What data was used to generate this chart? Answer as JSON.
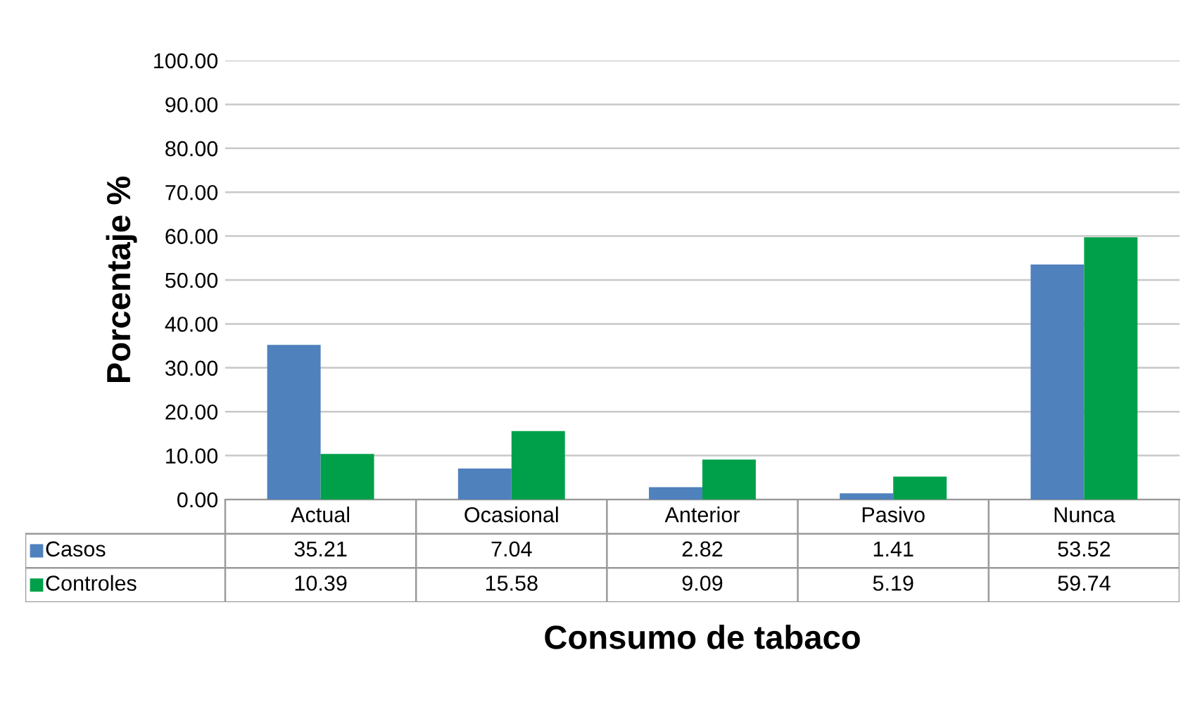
{
  "chart_data": {
    "type": "bar",
    "xlabel": "Consumo de tabaco",
    "ylabel": "Porcentaje %",
    "categories": [
      "Actual",
      "Ocasional",
      "Anterior",
      "Pasivo",
      "Nunca"
    ],
    "series": [
      {
        "name": "Casos",
        "color": "#4f81bd",
        "values": [
          35.21,
          7.04,
          2.82,
          1.41,
          53.52
        ]
      },
      {
        "name": "Controles",
        "color": "#00a04a",
        "values": [
          10.39,
          15.58,
          9.09,
          5.19,
          59.74
        ]
      }
    ],
    "ylim": [
      0,
      100
    ],
    "yticks": [
      {
        "value": 0,
        "label": "0.00"
      },
      {
        "value": 10,
        "label": "10.00"
      },
      {
        "value": 20,
        "label": "20.00"
      },
      {
        "value": 30,
        "label": "30.00"
      },
      {
        "value": 40,
        "label": "40.00"
      },
      {
        "value": 50,
        "label": "50.00"
      },
      {
        "value": 60,
        "label": "60.00"
      },
      {
        "value": 70,
        "label": "70.00"
      },
      {
        "value": 80,
        "label": "80.00"
      },
      {
        "value": 90,
        "label": "90.00"
      },
      {
        "value": 100,
        "label": "100.00"
      }
    ],
    "grid": "y",
    "legend": "bottom",
    "data_labels": true
  }
}
